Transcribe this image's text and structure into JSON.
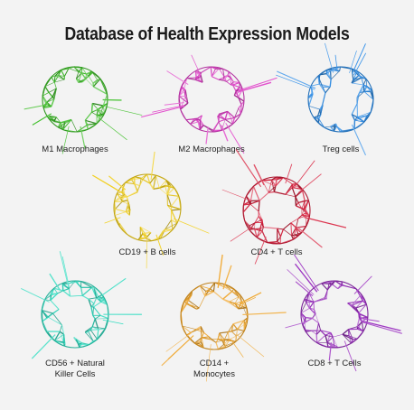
{
  "title": "Database of Health Expression Models",
  "cells": [
    {
      "label": "M1 Macrophages",
      "color": "#3fbf2a",
      "seed": 11
    },
    {
      "label": "M2 Macrophages",
      "color": "#e040c8",
      "seed": 23
    },
    {
      "label": "Treg cells",
      "color": "#2f8ee8",
      "seed": 37
    },
    {
      "label": "CD19 + B cells",
      "color": "#f2cf1c",
      "seed": 41
    },
    {
      "label": "CD4 + T cells",
      "color": "#d81f3c",
      "seed": 53
    },
    {
      "label": "CD56 + Natural\nKiller Cells",
      "color": "#2fdcc0",
      "seed": 67
    },
    {
      "label": "CD14 +\nMonocytes",
      "color": "#f0a52a",
      "seed": 79
    },
    {
      "label": "CD8 + T Cells",
      "color": "#9a2ec0",
      "seed": 83
    }
  ]
}
